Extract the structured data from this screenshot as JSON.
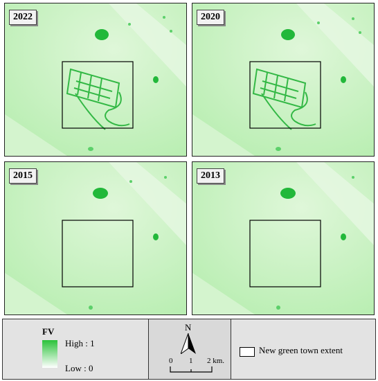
{
  "panels": [
    {
      "year": "2022",
      "town": "full"
    },
    {
      "year": "2020",
      "town": "full"
    },
    {
      "year": "2015",
      "town": "none"
    },
    {
      "year": "2013",
      "town": "none"
    }
  ],
  "legend": {
    "fv_title": "FV",
    "high_label": "High : 1",
    "low_label": "Low : 0",
    "north_label": "N",
    "scale_ticks": [
      "0",
      "1",
      "2 km."
    ],
    "extent_label": "New green town extent"
  },
  "colors": {
    "background_green": "#c8f2c2",
    "vegetation_green": "#22b83a",
    "extent_box": "#000000"
  }
}
